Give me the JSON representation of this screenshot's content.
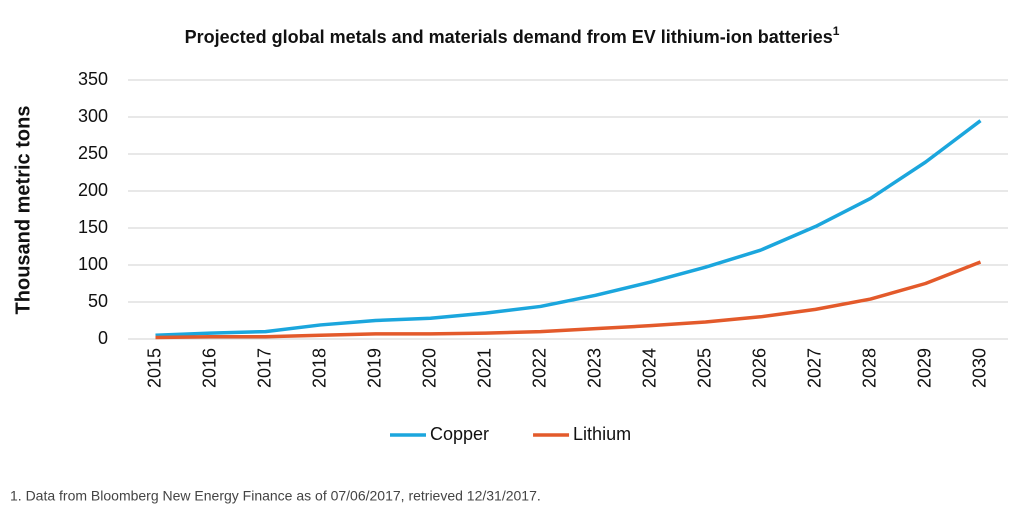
{
  "chart_data": {
    "type": "line",
    "title": "Projected global metals and materials demand from EV lithium-ion batteries",
    "title_superscript": "1",
    "y_label": "Thousand metric tons",
    "footnote": "1. Data from Bloomberg New Energy Finance as of 07/06/2017, retrieved 12/31/2017.",
    "categories": [
      "2015",
      "2016",
      "2017",
      "2018",
      "2019",
      "2020",
      "2021",
      "2022",
      "2023",
      "2024",
      "2025",
      "2026",
      "2027",
      "2028",
      "2029",
      "2030"
    ],
    "series": [
      {
        "name": "Copper",
        "color": "#1ba6dd",
        "values": [
          5,
          8,
          10,
          19,
          25,
          28,
          35,
          44,
          59,
          77,
          97,
          120,
          152,
          190,
          239,
          295
        ]
      },
      {
        "name": "Lithium",
        "color": "#e35a2b",
        "values": [
          2,
          3,
          3,
          5,
          7,
          7,
          8,
          10,
          14,
          18,
          23,
          30,
          40,
          54,
          75,
          104
        ]
      }
    ],
    "ylim": [
      0,
      350
    ],
    "yticks": [
      0,
      50,
      100,
      150,
      200,
      250,
      300,
      350
    ],
    "grid": true,
    "legend": "bottom"
  }
}
